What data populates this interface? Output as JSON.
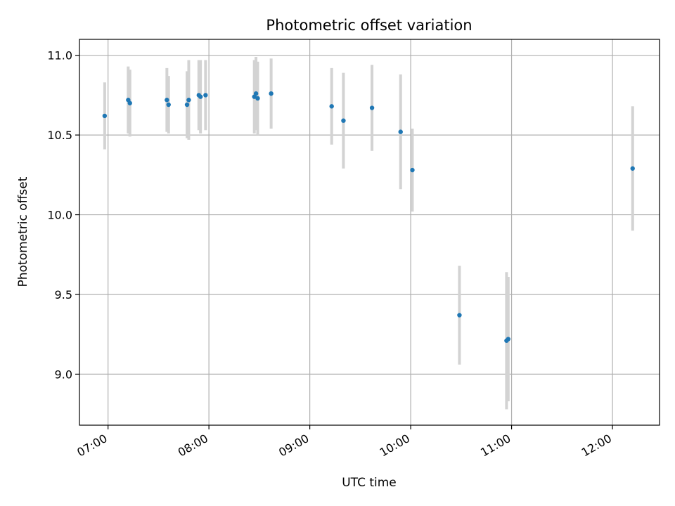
{
  "chart_data": {
    "type": "scatter",
    "title": "Photometric offset variation",
    "xlabel": "UTC time",
    "ylabel": "Photometric offset",
    "xlim": [
      "06:43",
      "12:28"
    ],
    "ylim": [
      8.68,
      11.1
    ],
    "x_ticks": [
      "07:00",
      "08:00",
      "09:00",
      "10:00",
      "11:00",
      "12:00"
    ],
    "y_ticks": [
      9.0,
      9.5,
      10.0,
      10.5,
      11.0
    ],
    "grid": true,
    "marker_color": "#1f77b4",
    "errorbar_color": "#d3d3d3",
    "points": [
      {
        "x": "06:58",
        "y": 10.62,
        "err": 0.21
      },
      {
        "x": "07:12",
        "y": 10.72,
        "err": 0.21
      },
      {
        "x": "07:13",
        "y": 10.7,
        "err": 0.21
      },
      {
        "x": "07:35",
        "y": 10.72,
        "err": 0.2
      },
      {
        "x": "07:36",
        "y": 10.69,
        "err": 0.18
      },
      {
        "x": "07:47",
        "y": 10.69,
        "err": 0.21
      },
      {
        "x": "07:48",
        "y": 10.72,
        "err": 0.25
      },
      {
        "x": "07:54",
        "y": 10.75,
        "err": 0.22
      },
      {
        "x": "07:55",
        "y": 10.74,
        "err": 0.23
      },
      {
        "x": "07:58",
        "y": 10.75,
        "err": 0.22
      },
      {
        "x": "08:27",
        "y": 10.74,
        "err": 0.23
      },
      {
        "x": "08:28",
        "y": 10.76,
        "err": 0.23
      },
      {
        "x": "08:29",
        "y": 10.73,
        "err": 0.23
      },
      {
        "x": "08:37",
        "y": 10.76,
        "err": 0.22
      },
      {
        "x": "09:13",
        "y": 10.68,
        "err": 0.24
      },
      {
        "x": "09:20",
        "y": 10.59,
        "err": 0.3
      },
      {
        "x": "09:37",
        "y": 10.67,
        "err": 0.27
      },
      {
        "x": "09:54",
        "y": 10.52,
        "err": 0.36
      },
      {
        "x": "10:01",
        "y": 10.28,
        "err": 0.26
      },
      {
        "x": "10:29",
        "y": 9.37,
        "err": 0.31
      },
      {
        "x": "10:57",
        "y": 9.21,
        "err": 0.43
      },
      {
        "x": "10:58",
        "y": 9.22,
        "err": 0.39
      },
      {
        "x": "12:12",
        "y": 10.29,
        "err": 0.39
      }
    ]
  }
}
